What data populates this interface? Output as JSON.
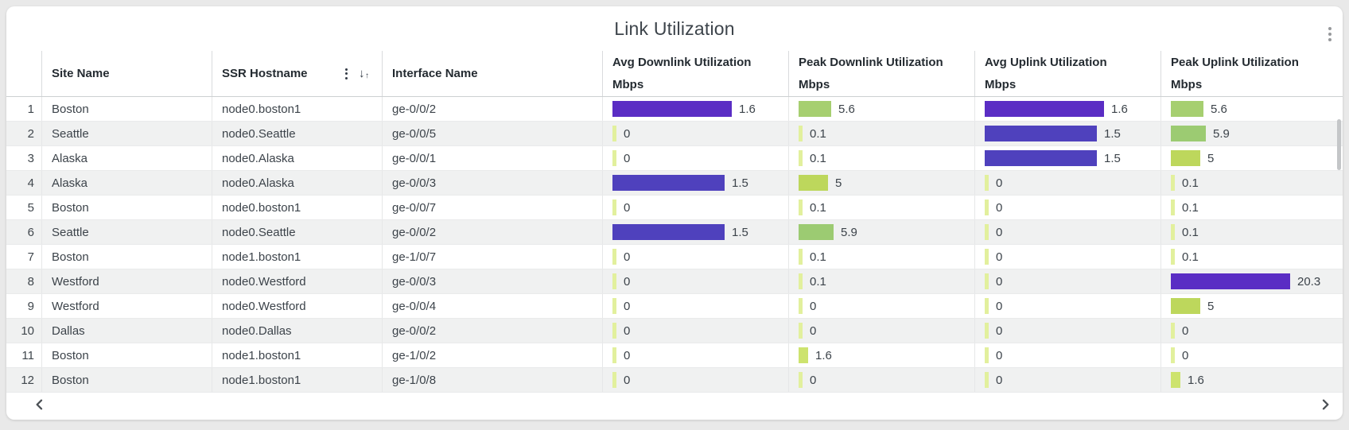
{
  "widget": {
    "title": "Link Utilization",
    "menu_icon": "kebab-vertical-icon"
  },
  "table": {
    "columns": {
      "site": {
        "label": "Site Name"
      },
      "hostname": {
        "label": "SSR Hostname",
        "menu_icon": "kebab-vertical-icon",
        "sort_icon": "sort-arrows-icon"
      },
      "interface": {
        "label": "Interface Name"
      },
      "avg_down": {
        "label": "Avg Downlink Utilization",
        "unit": "Mbps",
        "scale_max": 1.6
      },
      "peak_down": {
        "label": "Peak Downlink Utilization",
        "unit": "Mbps",
        "scale_max": 20.3
      },
      "avg_up": {
        "label": "Avg Uplink Utilization",
        "unit": "Mbps",
        "scale_max": 1.6
      },
      "peak_up": {
        "label": "Peak Uplink Utilization",
        "unit": "Mbps",
        "scale_max": 20.3
      }
    },
    "bar_palette": {
      "purple_high": "#5A2DC4",
      "purple_mid": "#4F41BD",
      "green": "#9CCB72",
      "green_light": "#A6CF70",
      "yellow_green": "#BDD75C",
      "yellow_light": "#CDE36E",
      "sliver": "#E2F09D"
    },
    "rows": [
      {
        "num": "1",
        "site": "Boston",
        "hostname": "node0.boston1",
        "interface": "ge-0/0/2",
        "avg_down": {
          "value": "1.6",
          "color": "#5A2DC4"
        },
        "peak_down": {
          "value": "5.6",
          "color": "#A6CF70"
        },
        "avg_up": {
          "value": "1.6",
          "color": "#5A2DC4"
        },
        "peak_up": {
          "value": "5.6",
          "color": "#A6CF70"
        }
      },
      {
        "num": "2",
        "site": "Seattle",
        "hostname": "node0.Seattle",
        "interface": "ge-0/0/5",
        "avg_down": {
          "value": "0",
          "color": "#E2F09D"
        },
        "peak_down": {
          "value": "0.1",
          "color": "#E2F09D"
        },
        "avg_up": {
          "value": "1.5",
          "color": "#4F41BD"
        },
        "peak_up": {
          "value": "5.9",
          "color": "#9CCB72"
        }
      },
      {
        "num": "3",
        "site": "Alaska",
        "hostname": "node0.Alaska",
        "interface": "ge-0/0/1",
        "avg_down": {
          "value": "0",
          "color": "#E2F09D"
        },
        "peak_down": {
          "value": "0.1",
          "color": "#E2F09D"
        },
        "avg_up": {
          "value": "1.5",
          "color": "#4F41BD"
        },
        "peak_up": {
          "value": "5",
          "color": "#BDD75C"
        }
      },
      {
        "num": "4",
        "site": "Alaska",
        "hostname": "node0.Alaska",
        "interface": "ge-0/0/3",
        "avg_down": {
          "value": "1.5",
          "color": "#4F41BD"
        },
        "peak_down": {
          "value": "5",
          "color": "#BDD75C"
        },
        "avg_up": {
          "value": "0",
          "color": "#E2F09D"
        },
        "peak_up": {
          "value": "0.1",
          "color": "#E2F09D"
        }
      },
      {
        "num": "5",
        "site": "Boston",
        "hostname": "node0.boston1",
        "interface": "ge-0/0/7",
        "avg_down": {
          "value": "0",
          "color": "#E2F09D"
        },
        "peak_down": {
          "value": "0.1",
          "color": "#E2F09D"
        },
        "avg_up": {
          "value": "0",
          "color": "#E2F09D"
        },
        "peak_up": {
          "value": "0.1",
          "color": "#E2F09D"
        }
      },
      {
        "num": "6",
        "site": "Seattle",
        "hostname": "node0.Seattle",
        "interface": "ge-0/0/2",
        "avg_down": {
          "value": "1.5",
          "color": "#4F41BD"
        },
        "peak_down": {
          "value": "5.9",
          "color": "#9CCB72"
        },
        "avg_up": {
          "value": "0",
          "color": "#E2F09D"
        },
        "peak_up": {
          "value": "0.1",
          "color": "#E2F09D"
        }
      },
      {
        "num": "7",
        "site": "Boston",
        "hostname": "node1.boston1",
        "interface": "ge-1/0/7",
        "avg_down": {
          "value": "0",
          "color": "#E2F09D"
        },
        "peak_down": {
          "value": "0.1",
          "color": "#E2F09D"
        },
        "avg_up": {
          "value": "0",
          "color": "#E2F09D"
        },
        "peak_up": {
          "value": "0.1",
          "color": "#E2F09D"
        }
      },
      {
        "num": "8",
        "site": "Westford",
        "hostname": "node0.Westford",
        "interface": "ge-0/0/3",
        "avg_down": {
          "value": "0",
          "color": "#E2F09D"
        },
        "peak_down": {
          "value": "0.1",
          "color": "#E2F09D"
        },
        "avg_up": {
          "value": "0",
          "color": "#E2F09D"
        },
        "peak_up": {
          "value": "20.3",
          "color": "#5A2DC4"
        }
      },
      {
        "num": "9",
        "site": "Westford",
        "hostname": "node0.Westford",
        "interface": "ge-0/0/4",
        "avg_down": {
          "value": "0",
          "color": "#E2F09D"
        },
        "peak_down": {
          "value": "0",
          "color": "#E2F09D"
        },
        "avg_up": {
          "value": "0",
          "color": "#E2F09D"
        },
        "peak_up": {
          "value": "5",
          "color": "#BDD75C"
        }
      },
      {
        "num": "10",
        "site": "Dallas",
        "hostname": "node0.Dallas",
        "interface": "ge-0/0/2",
        "avg_down": {
          "value": "0",
          "color": "#E2F09D"
        },
        "peak_down": {
          "value": "0",
          "color": "#E2F09D"
        },
        "avg_up": {
          "value": "0",
          "color": "#E2F09D"
        },
        "peak_up": {
          "value": "0",
          "color": "#E2F09D"
        }
      },
      {
        "num": "11",
        "site": "Boston",
        "hostname": "node1.boston1",
        "interface": "ge-1/0/2",
        "avg_down": {
          "value": "0",
          "color": "#E2F09D"
        },
        "peak_down": {
          "value": "1.6",
          "color": "#CDE36E"
        },
        "avg_up": {
          "value": "0",
          "color": "#E2F09D"
        },
        "peak_up": {
          "value": "0",
          "color": "#E2F09D"
        }
      },
      {
        "num": "12",
        "site": "Boston",
        "hostname": "node1.boston1",
        "interface": "ge-1/0/8",
        "avg_down": {
          "value": "0",
          "color": "#E2F09D"
        },
        "peak_down": {
          "value": "0",
          "color": "#E2F09D"
        },
        "avg_up": {
          "value": "0",
          "color": "#E2F09D"
        },
        "peak_up": {
          "value": "1.6",
          "color": "#CDE36E"
        }
      }
    ]
  },
  "pagination": {
    "prev_icon": "chevron-left-icon",
    "next_icon": "chevron-right-icon"
  }
}
